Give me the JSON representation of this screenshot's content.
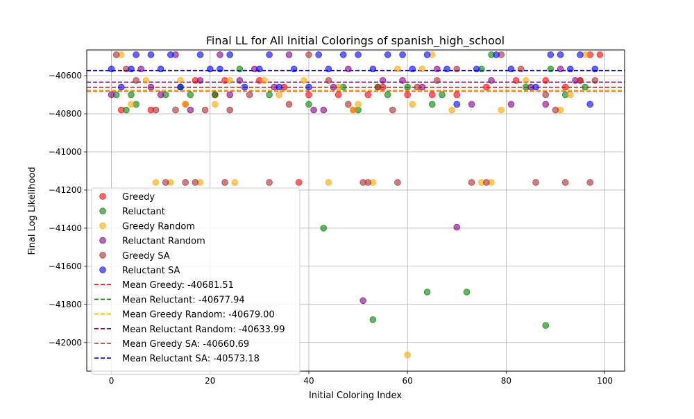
{
  "chart_data": {
    "type": "scatter",
    "title": "Final LL for All Initial Colorings of spanish_high_school",
    "xlabel": "Initial Coloring Index",
    "ylabel": "Final Log Likelihood",
    "xlim": [
      -5,
      104
    ],
    "ylim": [
      -42150,
      -40465
    ],
    "xticks": [
      0,
      20,
      40,
      60,
      80,
      100
    ],
    "xtick_labels": [
      "0",
      "20",
      "40",
      "60",
      "80",
      "100"
    ],
    "yticks": [
      -42000,
      -41800,
      -41600,
      -41400,
      -41200,
      -41000,
      -40800,
      -40600
    ],
    "ytick_labels": [
      "−42000",
      "−41800",
      "−41600",
      "−41400",
      "−41200",
      "−41000",
      "−40800",
      "−40600"
    ],
    "grid": true,
    "legend_position": "lower-left",
    "series": [
      {
        "name": "Greedy",
        "color": "#ff0000",
        "points": [
          [
            2,
            -40780
          ],
          [
            8,
            -40780
          ],
          [
            15,
            -40750
          ],
          [
            17,
            -40625
          ],
          [
            21,
            -40700
          ],
          [
            23,
            -40625
          ],
          [
            30,
            -40625
          ],
          [
            35,
            -40660
          ],
          [
            38,
            -41160
          ],
          [
            40,
            -40700
          ],
          [
            46,
            -40700
          ],
          [
            49,
            -40780
          ],
          [
            52,
            -40700
          ],
          [
            55,
            -40660
          ],
          [
            60,
            -40700
          ],
          [
            65,
            -40700
          ],
          [
            70,
            -40700
          ],
          [
            76,
            -40660
          ],
          [
            82,
            -40625
          ],
          [
            88,
            -40625
          ],
          [
            92,
            -40660
          ],
          [
            95,
            -40625
          ],
          [
            97,
            -40490
          ],
          [
            99,
            -40490
          ]
        ]
      },
      {
        "name": "Reluctant",
        "color": "#008000",
        "points": [
          [
            1,
            -40700
          ],
          [
            3,
            -40780
          ],
          [
            4,
            -40700
          ],
          [
            5,
            -40750
          ],
          [
            11,
            -40700
          ],
          [
            14,
            -40660
          ],
          [
            16,
            -40700
          ],
          [
            21,
            -40700
          ],
          [
            26,
            -40565
          ],
          [
            32,
            -40700
          ],
          [
            40,
            -40750
          ],
          [
            43,
            -41400
          ],
          [
            47,
            -40660
          ],
          [
            50,
            -40780
          ],
          [
            53,
            -41880
          ],
          [
            54,
            -40660
          ],
          [
            56,
            -40700
          ],
          [
            60,
            -40660
          ],
          [
            64,
            -41735
          ],
          [
            65,
            -40750
          ],
          [
            67,
            -40700
          ],
          [
            72,
            -41735
          ],
          [
            75,
            -40565
          ],
          [
            77,
            -40490
          ],
          [
            84,
            -40660
          ],
          [
            88,
            -41910
          ],
          [
            89,
            -40565
          ],
          [
            92,
            -40700
          ],
          [
            96,
            -40660
          ]
        ]
      },
      {
        "name": "Greedy Random",
        "color": "#ffa500",
        "points": [
          [
            2,
            -40490
          ],
          [
            4,
            -40750
          ],
          [
            7,
            -40625
          ],
          [
            9,
            -41160
          ],
          [
            12,
            -41160
          ],
          [
            14,
            -40625
          ],
          [
            15,
            -40750
          ],
          [
            18,
            -41160
          ],
          [
            21,
            -40750
          ],
          [
            24,
            -40625
          ],
          [
            25,
            -41160
          ],
          [
            31,
            -40625
          ],
          [
            34,
            -40700
          ],
          [
            39,
            -40625
          ],
          [
            44,
            -41160
          ],
          [
            46,
            -40660
          ],
          [
            49,
            -40780
          ],
          [
            50,
            -40750
          ],
          [
            53,
            -41160
          ],
          [
            58,
            -40565
          ],
          [
            60,
            -42065
          ],
          [
            61,
            -40750
          ],
          [
            63,
            -40565
          ],
          [
            65,
            -40490
          ],
          [
            69,
            -40780
          ],
          [
            75,
            -41160
          ],
          [
            77,
            -41160
          ],
          [
            79,
            -40780
          ],
          [
            84,
            -40625
          ],
          [
            91,
            -40780
          ],
          [
            93,
            -40700
          ],
          [
            96,
            -40490
          ]
        ]
      },
      {
        "name": "Reluctant Random",
        "color": "#800080",
        "points": [
          [
            0,
            -40700
          ],
          [
            6,
            -40565
          ],
          [
            8,
            -40660
          ],
          [
            10,
            -40700
          ],
          [
            13,
            -40490
          ],
          [
            16,
            -40780
          ],
          [
            18,
            -40625
          ],
          [
            22,
            -40490
          ],
          [
            24,
            -40700
          ],
          [
            26,
            -40625
          ],
          [
            29,
            -40565
          ],
          [
            33,
            -40660
          ],
          [
            36,
            -40490
          ],
          [
            41,
            -40780
          ],
          [
            43,
            -40780
          ],
          [
            45,
            -40660
          ],
          [
            48,
            -40565
          ],
          [
            51,
            -41780
          ],
          [
            55,
            -40625
          ],
          [
            59,
            -40625
          ],
          [
            63,
            -40660
          ],
          [
            66,
            -40565
          ],
          [
            70,
            -41395
          ],
          [
            73,
            -40750
          ],
          [
            77,
            -40625
          ],
          [
            81,
            -40750
          ],
          [
            85,
            -40660
          ],
          [
            88,
            -40750
          ],
          [
            91,
            -40565
          ],
          [
            94,
            -40625
          ]
        ]
      },
      {
        "name": "Greedy SA",
        "color": "#a52a2a",
        "points": [
          [
            1,
            -40490
          ],
          [
            3,
            -40565
          ],
          [
            5,
            -40625
          ],
          [
            9,
            -40780
          ],
          [
            11,
            -41160
          ],
          [
            13,
            -40780
          ],
          [
            15,
            -41160
          ],
          [
            17,
            -41160
          ],
          [
            19,
            -40780
          ],
          [
            23,
            -41160
          ],
          [
            24,
            -40780
          ],
          [
            28,
            -40700
          ],
          [
            32,
            -41160
          ],
          [
            36,
            -40750
          ],
          [
            40,
            -40490
          ],
          [
            44,
            -40625
          ],
          [
            48,
            -40750
          ],
          [
            51,
            -41160
          ],
          [
            52,
            -41160
          ],
          [
            54,
            -40660
          ],
          [
            57,
            -40780
          ],
          [
            58,
            -41160
          ],
          [
            62,
            -40660
          ],
          [
            66,
            -40625
          ],
          [
            70,
            -40565
          ],
          [
            73,
            -41160
          ],
          [
            76,
            -41160
          ],
          [
            79,
            -40490
          ],
          [
            83,
            -40565
          ],
          [
            86,
            -41160
          ],
          [
            88,
            -40700
          ],
          [
            90,
            -40780
          ],
          [
            92,
            -41160
          ],
          [
            95,
            -40625
          ],
          [
            97,
            -41160
          ],
          [
            98,
            -40625
          ]
        ]
      },
      {
        "name": "Reluctant SA",
        "color": "#0000ff",
        "points": [
          [
            0,
            -40565
          ],
          [
            2,
            -40660
          ],
          [
            4,
            -40565
          ],
          [
            5,
            -40490
          ],
          [
            8,
            -40490
          ],
          [
            10,
            -40565
          ],
          [
            12,
            -40490
          ],
          [
            14,
            -40660
          ],
          [
            18,
            -40490
          ],
          [
            20,
            -40565
          ],
          [
            22,
            -40565
          ],
          [
            24,
            -40490
          ],
          [
            27,
            -40660
          ],
          [
            30,
            -40565
          ],
          [
            32,
            -40490
          ],
          [
            34,
            -40660
          ],
          [
            37,
            -40565
          ],
          [
            40,
            -40660
          ],
          [
            42,
            -40490
          ],
          [
            44,
            -40565
          ],
          [
            47,
            -40490
          ],
          [
            50,
            -40490
          ],
          [
            53,
            -40565
          ],
          [
            56,
            -40490
          ],
          [
            59,
            -40490
          ],
          [
            61,
            -40565
          ],
          [
            64,
            -40490
          ],
          [
            68,
            -40565
          ],
          [
            70,
            -40750
          ],
          [
            74,
            -40565
          ],
          [
            78,
            -40490
          ],
          [
            81,
            -40565
          ],
          [
            86,
            -40660
          ],
          [
            89,
            -40490
          ],
          [
            91,
            -40490
          ],
          [
            93,
            -40565
          ],
          [
            95,
            -40490
          ],
          [
            97,
            -40750
          ],
          [
            98,
            -40565
          ]
        ]
      }
    ],
    "mean_lines": [
      {
        "label": "Mean Greedy: -40681.51",
        "value": -40681.51,
        "color": "#ff0000"
      },
      {
        "label": "Mean Reluctant: -40677.94",
        "value": -40677.94,
        "color": "#008000"
      },
      {
        "label": "Mean Greedy Random: -40679.00",
        "value": -40679.0,
        "color": "#ffa500"
      },
      {
        "label": "Mean Reluctant Random: -40633.99",
        "value": -40633.99,
        "color": "#800080"
      },
      {
        "label": "Mean Greedy SA: -40660.69",
        "value": -40660.69,
        "color": "#a52a2a"
      },
      {
        "label": "Mean Reluctant SA: -40573.18",
        "value": -40573.18,
        "color": "#0000cd"
      }
    ]
  }
}
